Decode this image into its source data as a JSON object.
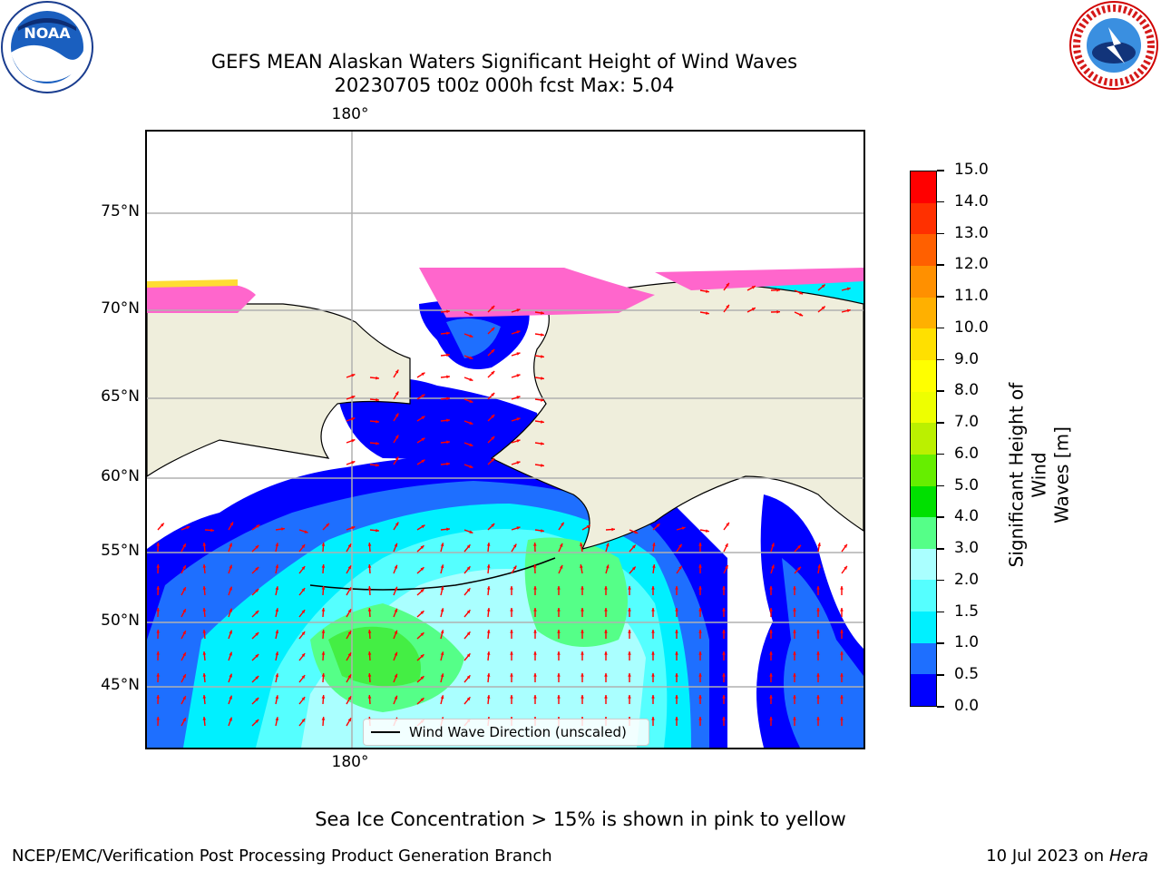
{
  "title_line1": "GEFS MEAN Alaskan Waters Significant Height of Wind Waves",
  "title_line2": "20230705 t00z 000h fcst   Max: 5.04",
  "logos": {
    "left": "NOAA",
    "right": "NATIONAL WEATHER SERVICE"
  },
  "map": {
    "lat_labels": [
      "75°N",
      "70°N",
      "65°N",
      "60°N",
      "55°N",
      "50°N",
      "45°N"
    ],
    "lon_label_top": "180°",
    "lon_label_bottom": "180°",
    "legend_label": "Wind Wave Direction (unscaled)"
  },
  "colorbar": {
    "label_line1": "Significant Height of Wind",
    "label_line2": "Waves [m]",
    "ticks": [
      "0.0",
      "0.5",
      "1.0",
      "1.5",
      "2.0",
      "3.0",
      "4.0",
      "5.0",
      "6.0",
      "7.0",
      "8.0",
      "9.0",
      "10.0",
      "11.0",
      "12.0",
      "13.0",
      "14.0",
      "15.0"
    ],
    "colors": [
      "#0000ff",
      "#1e6fff",
      "#00f0ff",
      "#55ffff",
      "#aaffff",
      "#55ff88",
      "#00e000",
      "#66ee00",
      "#bbf000",
      "#eeff00",
      "#ffff00",
      "#ffe000",
      "#ffb000",
      "#ff9000",
      "#ff6000",
      "#ff3000",
      "#ff0000"
    ]
  },
  "note": "Sea Ice Concentration > 15% is shown in pink to yellow",
  "footer_left": "NCEP/EMC/Verification Post Processing Product Generation Branch",
  "footer_right_date": "10 Jul 2023 on ",
  "footer_right_host": "Hera"
}
